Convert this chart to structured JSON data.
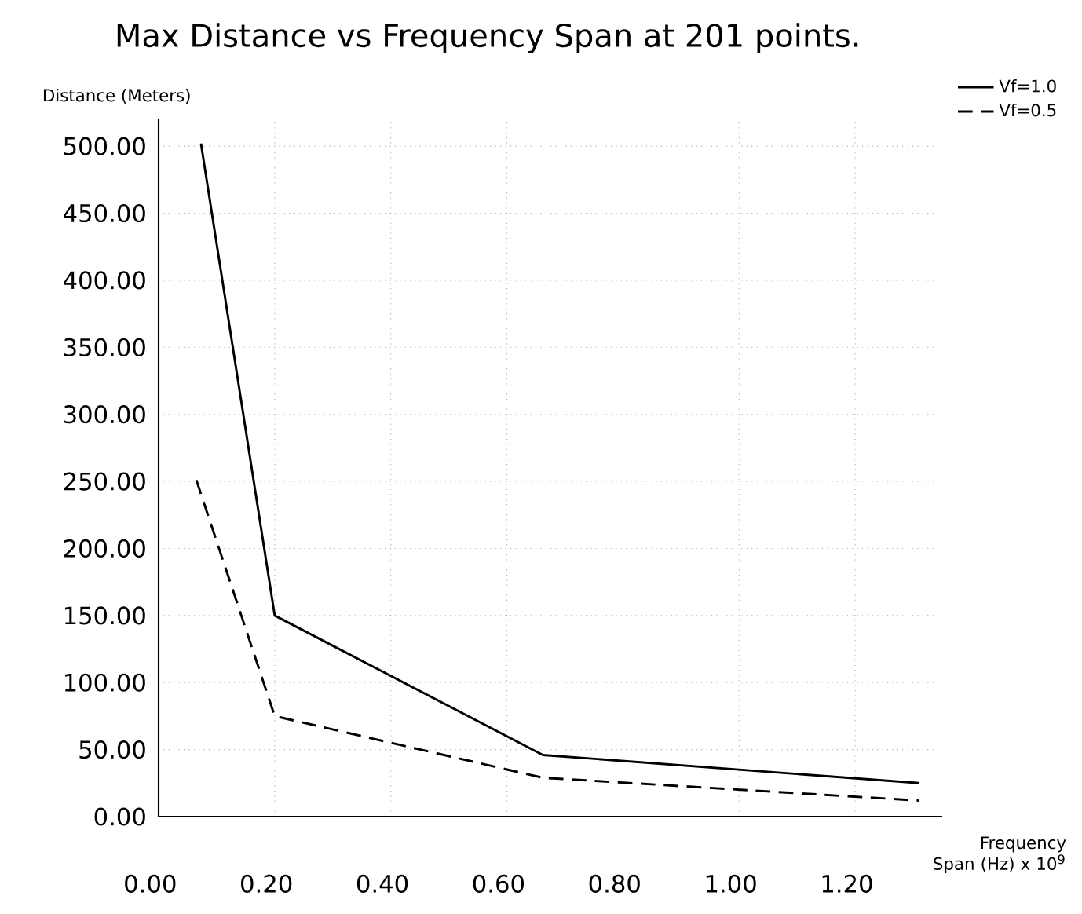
{
  "chart_data": {
    "type": "line",
    "title": "Max Distance vs Frequency Span at 201 points.",
    "xlabel": "Frequency Span (Hz) x 10$^{9}$",
    "ylabel": "Distance (Meters)",
    "series": [
      {
        "name": "Vf=1.0",
        "color": "#000000",
        "line_style": "solid",
        "x": [
          0.073,
          0.2,
          0.662,
          1.31
        ],
        "values": [
          502,
          150,
          46,
          25
        ]
      },
      {
        "name": "Vf=0.5",
        "color": "#000000",
        "line_style": "dashed",
        "x": [
          0.065,
          0.2,
          0.662,
          1.31
        ],
        "values": [
          251,
          75,
          29,
          12
        ]
      }
    ],
    "xlim": [
      0,
      1.35
    ],
    "ylim": [
      0,
      520
    ],
    "xticks": [
      {
        "value": 0,
        "label": "0.00"
      },
      {
        "value": 0.2,
        "label": "0.20"
      },
      {
        "value": 0.4,
        "label": "0.40"
      },
      {
        "value": 0.6,
        "label": "0.60"
      },
      {
        "value": 0.8,
        "label": "0.80"
      },
      {
        "value": 1.0,
        "label": "1.00"
      },
      {
        "value": 1.2,
        "label": "1.20"
      }
    ],
    "yticks": [
      {
        "value": 0,
        "label": "0.00"
      },
      {
        "value": 50,
        "label": "50.00"
      },
      {
        "value": 100,
        "label": "100.00"
      },
      {
        "value": 150,
        "label": "150.00"
      },
      {
        "value": 200,
        "label": "200.00"
      },
      {
        "value": 250,
        "label": "250.00"
      },
      {
        "value": 300,
        "label": "300.00"
      },
      {
        "value": 350,
        "label": "350.00"
      },
      {
        "value": 400,
        "label": "400.00"
      },
      {
        "value": 450,
        "label": "450.00"
      },
      {
        "value": 500,
        "label": "500.00"
      }
    ],
    "grid": true,
    "legend": "top right",
    "marker": "none"
  }
}
